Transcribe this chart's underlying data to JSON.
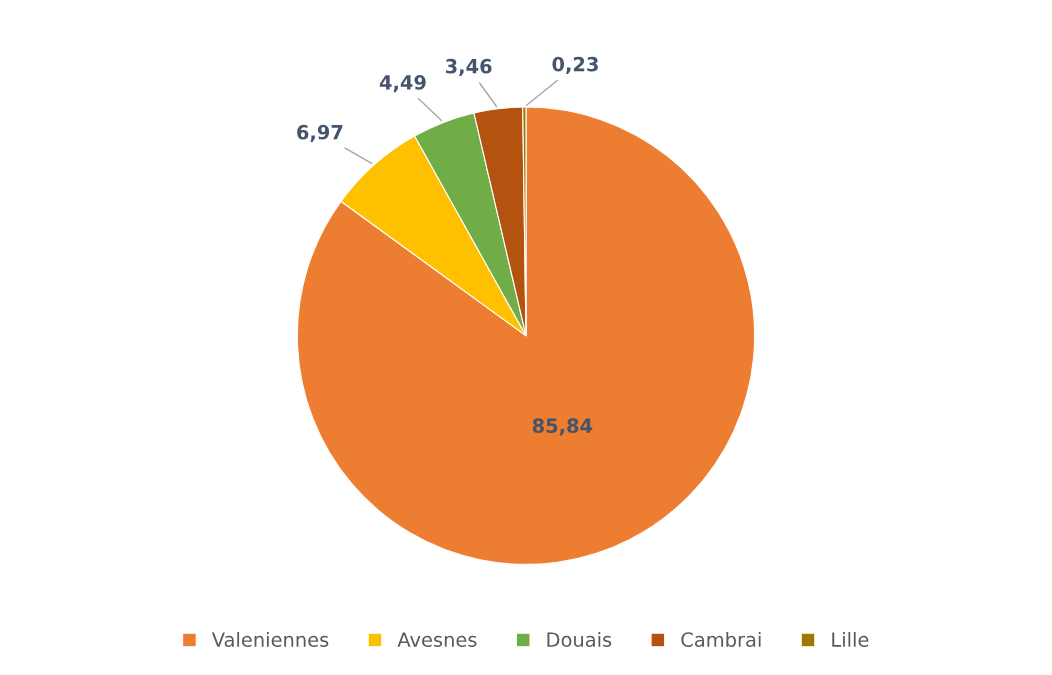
{
  "chart_data": {
    "type": "pie",
    "categories": [
      "Valeniennes",
      "Avesnes",
      "Douais",
      "Cambrai",
      "Lille"
    ],
    "values": [
      85.84,
      6.97,
      4.49,
      3.46,
      0.23
    ],
    "colors": [
      "#ed7d31",
      "#ffc000",
      "#70ad47",
      "#b4520f",
      "#a07800"
    ],
    "value_labels": [
      "85,84",
      "6,97",
      "4,49",
      "3,46",
      "0,23"
    ],
    "legend": "bottom"
  }
}
